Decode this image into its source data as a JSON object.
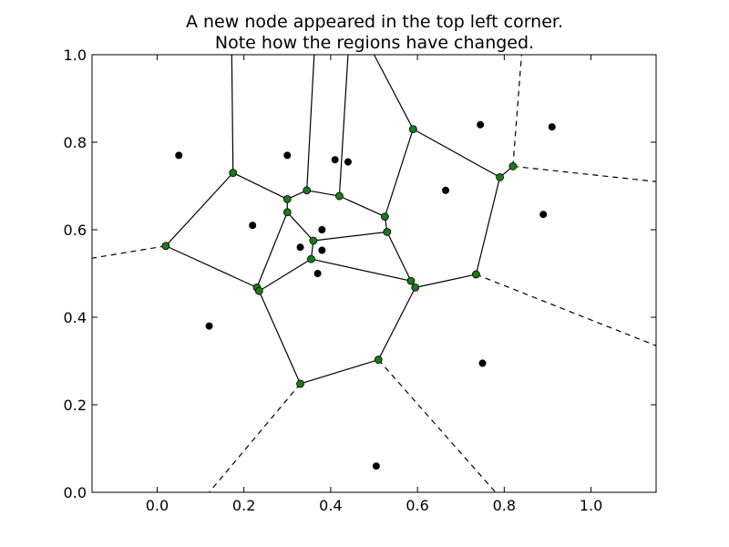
{
  "chart_data": {
    "type": "scatter",
    "subtype": "voronoi",
    "title": [
      "A new node appeared in the top left corner.",
      "Note how the regions have changed."
    ],
    "xlim": [
      -0.15,
      1.15
    ],
    "ylim": [
      0.0,
      1.0
    ],
    "xticks": [
      0.0,
      0.2,
      0.4,
      0.6,
      0.8,
      1.0
    ],
    "xtick_labels": [
      "0.0",
      "0.2",
      "0.4",
      "0.6",
      "0.8",
      "1.0"
    ],
    "yticks": [
      0.0,
      0.2,
      0.4,
      0.6,
      0.8,
      1.0
    ],
    "ytick_labels": [
      "0.0",
      "0.2",
      "0.4",
      "0.6",
      "0.8",
      "1.0"
    ],
    "grid": false,
    "colors": {
      "points": "#000000",
      "vertices": "#1a7a1a",
      "edges": "#000000"
    },
    "points": [
      [
        0.05,
        0.77
      ],
      [
        0.3,
        0.77
      ],
      [
        0.41,
        0.76
      ],
      [
        0.44,
        0.755
      ],
      [
        0.22,
        0.61
      ],
      [
        0.38,
        0.6
      ],
      [
        0.33,
        0.56
      ],
      [
        0.38,
        0.553
      ],
      [
        0.37,
        0.5
      ],
      [
        0.12,
        0.38
      ],
      [
        0.665,
        0.69
      ],
      [
        0.745,
        0.84
      ],
      [
        0.91,
        0.835
      ],
      [
        0.89,
        0.635
      ],
      [
        0.75,
        0.295
      ],
      [
        0.505,
        0.06
      ]
    ],
    "vertices": [
      [
        0.02,
        0.563
      ],
      [
        0.175,
        0.73
      ],
      [
        0.3,
        0.67
      ],
      [
        0.345,
        0.69
      ],
      [
        0.42,
        0.677
      ],
      [
        0.525,
        0.63
      ],
      [
        0.3,
        0.64
      ],
      [
        0.36,
        0.575
      ],
      [
        0.53,
        0.595
      ],
      [
        0.355,
        0.533
      ],
      [
        0.23,
        0.468
      ],
      [
        0.235,
        0.46
      ],
      [
        0.585,
        0.483
      ],
      [
        0.595,
        0.468
      ],
      [
        0.33,
        0.248
      ],
      [
        0.51,
        0.303
      ],
      [
        0.735,
        0.498
      ],
      [
        0.79,
        0.72
      ],
      [
        0.82,
        0.745
      ],
      [
        0.59,
        0.83
      ]
    ],
    "edges": [
      [
        [
          0.02,
          0.563
        ],
        [
          0.175,
          0.73
        ]
      ],
      [
        [
          0.02,
          0.563
        ],
        [
          0.23,
          0.468
        ]
      ],
      [
        [
          0.175,
          0.73
        ],
        [
          0.3,
          0.67
        ]
      ],
      [
        [
          0.175,
          0.73
        ],
        [
          0.172,
          1.0
        ]
      ],
      [
        [
          0.3,
          0.67
        ],
        [
          0.345,
          0.69
        ]
      ],
      [
        [
          0.3,
          0.67
        ],
        [
          0.3,
          0.64
        ]
      ],
      [
        [
          0.345,
          0.69
        ],
        [
          0.42,
          0.677
        ]
      ],
      [
        [
          0.345,
          0.69
        ],
        [
          0.362,
          1.0
        ]
      ],
      [
        [
          0.42,
          0.677
        ],
        [
          0.525,
          0.63
        ]
      ],
      [
        [
          0.42,
          0.677
        ],
        [
          0.44,
          1.0
        ]
      ],
      [
        [
          0.525,
          0.63
        ],
        [
          0.53,
          0.595
        ]
      ],
      [
        [
          0.525,
          0.63
        ],
        [
          0.59,
          0.83
        ]
      ],
      [
        [
          0.59,
          0.83
        ],
        [
          0.5,
          1.0
        ]
      ],
      [
        [
          0.59,
          0.83
        ],
        [
          0.79,
          0.72
        ]
      ],
      [
        [
          0.79,
          0.72
        ],
        [
          0.82,
          0.745
        ]
      ],
      [
        [
          0.79,
          0.72
        ],
        [
          0.735,
          0.498
        ]
      ],
      [
        [
          0.3,
          0.64
        ],
        [
          0.36,
          0.575
        ]
      ],
      [
        [
          0.3,
          0.64
        ],
        [
          0.23,
          0.468
        ]
      ],
      [
        [
          0.36,
          0.575
        ],
        [
          0.53,
          0.595
        ]
      ],
      [
        [
          0.36,
          0.575
        ],
        [
          0.355,
          0.533
        ]
      ],
      [
        [
          0.53,
          0.595
        ],
        [
          0.585,
          0.483
        ]
      ],
      [
        [
          0.355,
          0.533
        ],
        [
          0.235,
          0.46
        ]
      ],
      [
        [
          0.355,
          0.533
        ],
        [
          0.585,
          0.483
        ]
      ],
      [
        [
          0.23,
          0.468
        ],
        [
          0.235,
          0.46
        ]
      ],
      [
        [
          0.235,
          0.46
        ],
        [
          0.33,
          0.248
        ]
      ],
      [
        [
          0.585,
          0.483
        ],
        [
          0.595,
          0.468
        ]
      ],
      [
        [
          0.595,
          0.468
        ],
        [
          0.735,
          0.498
        ]
      ],
      [
        [
          0.595,
          0.468
        ],
        [
          0.51,
          0.303
        ]
      ],
      [
        [
          0.33,
          0.248
        ],
        [
          0.51,
          0.303
        ]
      ]
    ],
    "rays": [
      [
        [
          0.02,
          0.563
        ],
        [
          -0.15,
          0.535
        ]
      ],
      [
        [
          0.82,
          0.745
        ],
        [
          0.84,
          1.0
        ]
      ],
      [
        [
          0.82,
          0.745
        ],
        [
          1.15,
          0.71
        ]
      ],
      [
        [
          0.735,
          0.498
        ],
        [
          1.15,
          0.335
        ]
      ],
      [
        [
          0.33,
          0.248
        ],
        [
          0.12,
          0.0
        ]
      ],
      [
        [
          0.51,
          0.303
        ],
        [
          0.78,
          0.0
        ]
      ]
    ]
  }
}
